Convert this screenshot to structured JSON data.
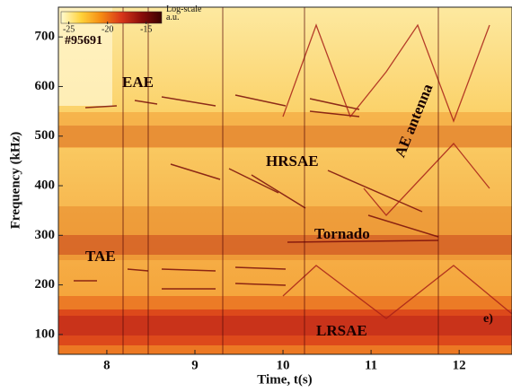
{
  "chart_data": {
    "type": "spectrogram",
    "shot": "#95691",
    "panel_label": "e)",
    "x_label": "Time, t(s)",
    "y_label": "Frequency (kHz)",
    "xlim": [
      7.45,
      12.6
    ],
    "xticks": [
      8,
      9,
      10,
      11,
      12
    ],
    "ylim": [
      60,
      760
    ],
    "yticks": [
      100,
      200,
      300,
      400,
      500,
      600,
      700
    ],
    "colorbar": {
      "label": "Log-scale\na.u.",
      "lim": [
        -26,
        -13
      ],
      "ticks": [
        -25,
        -20,
        -15
      ],
      "colors": [
        "#fffbd0",
        "#ffd23a",
        "#f58a12",
        "#d8361a",
        "#8a0d0a",
        "#3a0000"
      ]
    },
    "annotations": [
      "EAE",
      "HRSAE",
      "AE antenna",
      "Tornado",
      "TAE",
      "LRSAE"
    ]
  }
}
